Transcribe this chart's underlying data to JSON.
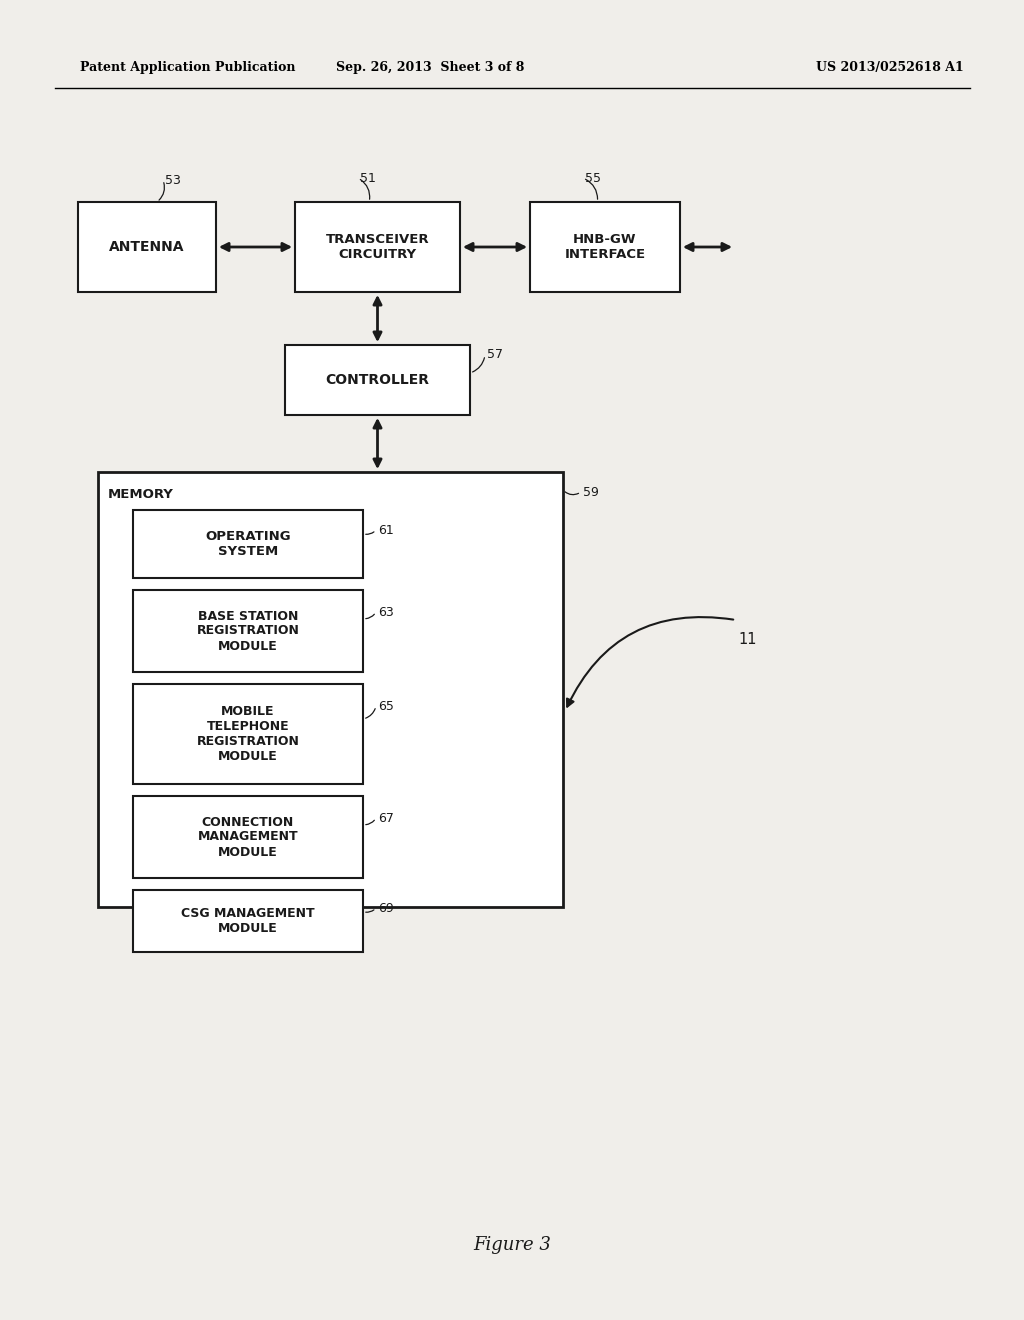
{
  "bg_color": "#f0eeea",
  "header_left": "Patent Application Publication",
  "header_mid": "Sep. 26, 2013  Sheet 3 of 8",
  "header_right": "US 2013/0252618 A1",
  "figure_label": "Figure 3"
}
